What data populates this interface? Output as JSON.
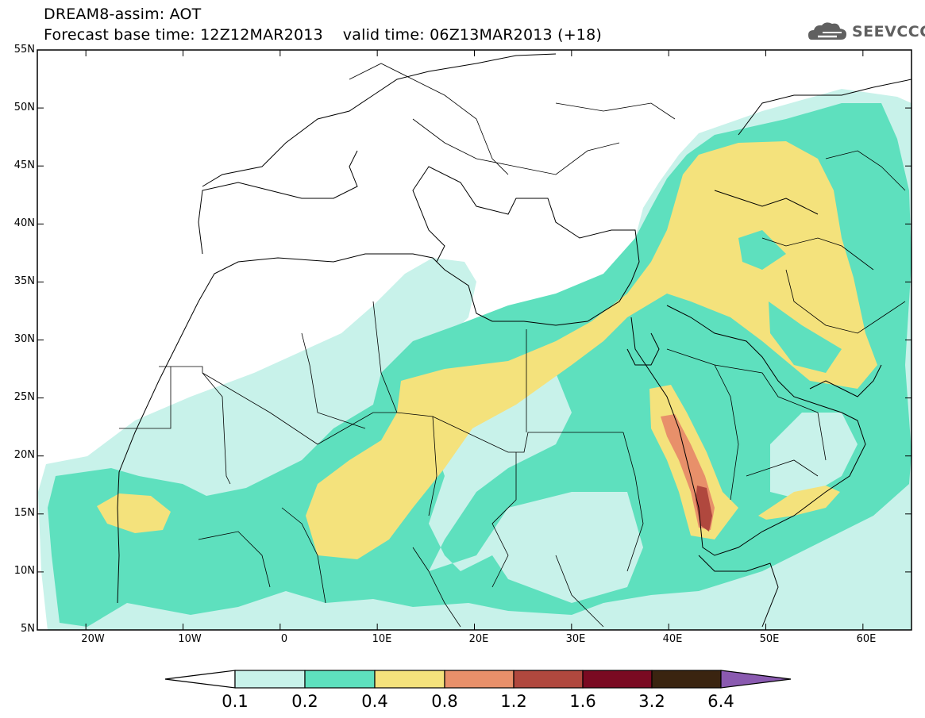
{
  "title": {
    "line1": "DREAM8-assim: AOT",
    "line2": "Forecast base time: 12Z12MAR2013    valid time: 06Z13MAR2013 (+18)"
  },
  "logo": {
    "text": "SEEVCCC",
    "icon": "cloud-icon"
  },
  "map": {
    "variable": "AOT",
    "lon_range": [
      -25,
      65
    ],
    "lat_range": [
      5,
      55
    ],
    "lat_ticks": [
      "55N",
      "50N",
      "45N",
      "40N",
      "35N",
      "30N",
      "25N",
      "20N",
      "15N",
      "10N",
      "5N"
    ],
    "lon_ticks": [
      "20W",
      "10W",
      "0",
      "10E",
      "20E",
      "30E",
      "40E",
      "50E",
      "60E"
    ]
  },
  "colorbar": {
    "labels": [
      "0.1",
      "0.2",
      "0.4",
      "0.8",
      "1.2",
      "1.6",
      "3.2",
      "6.4"
    ],
    "colors": [
      "#c8f2ea",
      "#5ee0be",
      "#f4e27c",
      "#e8906a",
      "#b0483e",
      "#7a0a22",
      "#3a2410",
      "#8a5ab0"
    ]
  }
}
